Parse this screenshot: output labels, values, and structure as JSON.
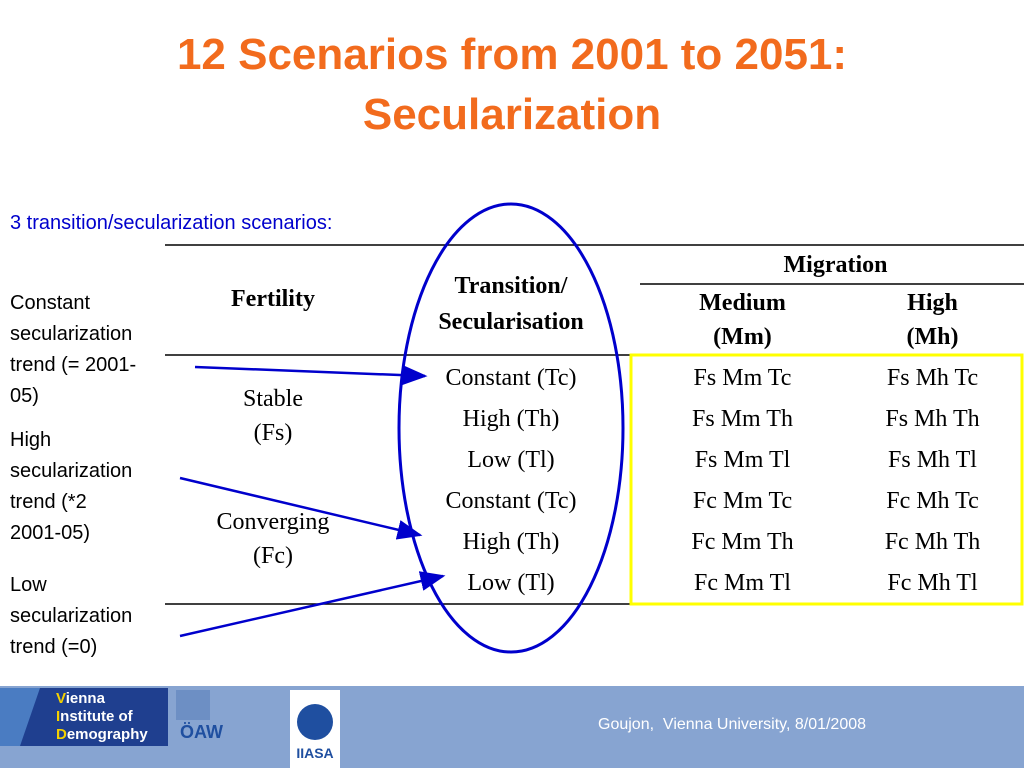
{
  "title": [
    "12 Scenarios from 2001 to 2051:",
    "Secularization"
  ],
  "subtitle": "3 transition/secularization scenarios:",
  "table": {
    "headers": {
      "fertility": "Fertility",
      "transition": [
        "Transition/",
        "Secularisation"
      ],
      "migration": "Migration",
      "medium": [
        "Medium",
        "(Mm)"
      ],
      "high": [
        "High",
        "(Mh)"
      ]
    },
    "groups": [
      {
        "label": [
          "Stable",
          "(Fs)"
        ],
        "rows": [
          [
            "Constant (Tc)",
            "Fs Mm Tc",
            "Fs Mh Tc"
          ],
          [
            "High (Th)",
            "Fs Mm Th",
            "Fs Mh Th"
          ],
          [
            "Low (Tl)",
            "Fs Mm Tl",
            "Fs Mh Tl"
          ]
        ]
      },
      {
        "label": [
          "Converging",
          "(Fc)"
        ],
        "rows": [
          [
            "Constant (Tc)",
            "Fc Mm Tc",
            "Fc Mh Tc"
          ],
          [
            "High (Th)",
            "Fc Mm Th",
            "Fc Mh Th"
          ],
          [
            "Low (Tl)",
            "Fc Mm Tl",
            "Fc Mh Tl"
          ]
        ]
      }
    ]
  },
  "annotations": [
    [
      "Constant",
      "secularization",
      "trend (= 2001-",
      "05)"
    ],
    [
      "High",
      "secularization",
      "trend (*2",
      "2001-05)"
    ],
    [
      "Low",
      "secularization",
      "trend (=0)"
    ]
  ],
  "footer": {
    "logos": {
      "vid": [
        "Vienna",
        "Institute of",
        "Demography"
      ],
      "oaw": "ÖAW",
      "iiasa": "IIASA"
    },
    "text": "Goujon,  Vienna University, 8/01/2008"
  }
}
